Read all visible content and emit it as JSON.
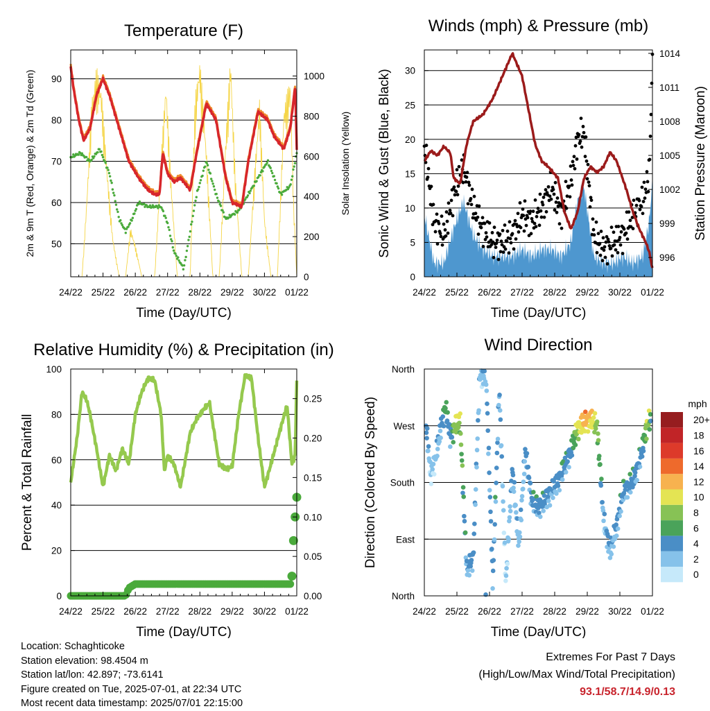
{
  "chart_data": [
    {
      "type": "line",
      "title": "Temperature (F)",
      "xlabel": "Time (Day/UTC)",
      "ylabel": "2m & 9m T (Red, Orange) & 2m Td (Green)",
      "y2label": "Solar Insolation (Yellow)",
      "ylim": [
        42,
        97
      ],
      "y2lim": [
        0,
        1130
      ],
      "yticks": [
        50,
        60,
        70,
        80,
        90
      ],
      "y2ticks": [
        0,
        200,
        400,
        600,
        800,
        1000
      ],
      "x_ticks": [
        "24/22",
        "25/22",
        "26/22",
        "27/22",
        "28/22",
        "29/22",
        "30/22",
        "01/22"
      ],
      "grid": true,
      "colors": {
        "temp2m": "#d7262b",
        "temp9m": "#ef8a2c",
        "dewpoint": "#4aaa3b",
        "solar": "#f5d547"
      },
      "series": [
        {
          "key": "temp2m",
          "x": [
            0,
            0.08,
            0.25,
            0.4,
            0.6,
            0.8,
            1.0,
            1.2,
            1.5,
            1.8,
            2.1,
            2.4,
            2.6,
            2.75,
            2.85,
            3.0,
            3.2,
            3.4,
            3.7,
            3.9,
            4.2,
            4.5,
            4.8,
            5.0,
            5.3,
            5.5,
            5.8,
            6.1,
            6.3,
            6.6,
            6.8,
            6.95,
            7.0
          ],
          "y": [
            93,
            88,
            80,
            75,
            78,
            86,
            90,
            86,
            78,
            70,
            66,
            63,
            62,
            62,
            72,
            67,
            65,
            66,
            63,
            72,
            84,
            80,
            66,
            60,
            59,
            70,
            82,
            80,
            76,
            73,
            78,
            88,
            73
          ]
        },
        {
          "key": "dewpoint",
          "x": [
            0,
            0.3,
            0.6,
            0.9,
            1.2,
            1.5,
            1.7,
            1.9,
            2.1,
            2.4,
            2.6,
            2.8,
            3.0,
            3.2,
            3.5,
            3.9,
            4.2,
            4.5,
            4.8,
            5.2,
            5.5,
            5.8,
            6.1,
            6.5,
            6.8,
            7.0
          ],
          "y": [
            71,
            72,
            70,
            73,
            67,
            56,
            53,
            56,
            60,
            59,
            59,
            59,
            55,
            48,
            44,
            62,
            70,
            62,
            56,
            58,
            62,
            66,
            70,
            62,
            64,
            72
          ]
        },
        {
          "key": "solar",
          "x": [
            0,
            0.15,
            0.35,
            0.5,
            0.65,
            0.8,
            0.95,
            1.1,
            1.3,
            1.5,
            1.7,
            1.85,
            2.0,
            2.2,
            2.4,
            2.6,
            2.8,
            2.95,
            3.1,
            3.3,
            3.5,
            3.7,
            3.85,
            4.0,
            4.2,
            4.4,
            4.6,
            4.8,
            4.95,
            5.1,
            5.3,
            5.5,
            5.7,
            5.85,
            6.0,
            6.2,
            6.4,
            6.6,
            6.8,
            6.9,
            7.0
          ],
          "y": [
            0,
            0,
            0,
            400,
            900,
            1050,
            950,
            600,
            200,
            0,
            0,
            250,
            160,
            0,
            0,
            0,
            600,
            1000,
            500,
            0,
            0,
            0,
            900,
            1100,
            650,
            0,
            0,
            700,
            1120,
            500,
            0,
            0,
            550,
            900,
            300,
            0,
            0,
            850,
            1000,
            400,
            0
          ]
        }
      ]
    },
    {
      "type": "line",
      "title": "Winds (mph) & Pressure (mb)",
      "xlabel": "Time (Day/UTC)",
      "ylabel": "Sonic Wind & Gust (Blue, Black)",
      "y2label": "Station Pressure (Maroon)",
      "ylim": [
        0,
        33
      ],
      "y2lim": [
        994.3,
        1014.3
      ],
      "yticks": [
        0,
        5,
        10,
        15,
        20,
        25,
        30
      ],
      "y2ticks": [
        996,
        999,
        1002,
        1005,
        1008,
        1011,
        1014
      ],
      "x_ticks": [
        "24/22",
        "25/22",
        "26/22",
        "27/22",
        "28/22",
        "29/22",
        "30/22",
        "01/22"
      ],
      "grid": true,
      "colors": {
        "wind": "#4e97cf",
        "gust": "#000000",
        "pressure": "#9b1b1b"
      },
      "series": [
        {
          "key": "pressure",
          "x": [
            0,
            0.2,
            0.4,
            0.6,
            0.8,
            0.9,
            1.1,
            1.3,
            1.5,
            1.8,
            2.1,
            2.4,
            2.7,
            3.0,
            3.2,
            3.4,
            3.6,
            3.8,
            4.1,
            4.3,
            4.5,
            4.7,
            4.9,
            5.1,
            5.3,
            5.5,
            5.7,
            5.9,
            6.2,
            6.4,
            6.6,
            6.8,
            6.9,
            7.0
          ],
          "y": [
            1004.5,
            1005.4,
            1005,
            1005.8,
            1005.2,
            1003,
            1002.5,
            1006,
            1008,
            1008.6,
            1010,
            1012,
            1014,
            1012,
            1009,
            1006,
            1004.5,
            1004,
            1003,
            1000,
            998.5,
            1000,
            1003,
            1004,
            1003.5,
            1004,
            1005.3,
            1004.5,
            1002,
            1000,
            998.5,
            997.3,
            996.5,
            995
          ]
        },
        {
          "key": "wind",
          "x": [
            0,
            0.3,
            0.6,
            0.9,
            1.2,
            1.5,
            1.8,
            2.1,
            2.4,
            2.7,
            3.0,
            3.3,
            3.6,
            3.9,
            4.2,
            4.5,
            4.7,
            4.9,
            5.2,
            5.5,
            5.8,
            6.1,
            6.4,
            6.7,
            6.9,
            7.0
          ],
          "y": [
            9,
            2,
            2,
            7,
            11,
            6,
            4,
            3,
            3,
            3,
            4,
            3,
            4,
            4,
            3,
            5,
            11,
            13,
            3,
            2,
            2,
            3,
            2,
            3,
            8,
            14
          ]
        },
        {
          "key": "gust",
          "x": [
            0,
            0.3,
            0.6,
            0.9,
            1.2,
            1.5,
            1.8,
            2.1,
            2.4,
            2.7,
            3.0,
            3.3,
            3.6,
            3.9,
            4.2,
            4.5,
            4.7,
            4.9,
            5.2,
            5.5,
            5.8,
            6.1,
            6.4,
            6.7,
            6.9,
            7.0
          ],
          "y": [
            19,
            8,
            6,
            12,
            16,
            10,
            7,
            5,
            5,
            6,
            9,
            8,
            10,
            13,
            9,
            14,
            20,
            21,
            6,
            4,
            5,
            6,
            9,
            11,
            15,
            31
          ]
        }
      ]
    },
    {
      "type": "line",
      "title": "Relative Humidity (%) & Precipitation (in)",
      "xlabel": "Time (Day/UTC)",
      "ylabel": "Percent & Total Rainfall",
      "ylim": [
        0,
        100
      ],
      "y2lim": [
        0,
        0.2875
      ],
      "yticks": [
        0,
        20,
        40,
        60,
        80,
        100
      ],
      "y2ticks": [
        0.0,
        0.05,
        0.1,
        0.15,
        0.2,
        0.25
      ],
      "y2tick_labels": [
        "0.00",
        "0.05",
        "0.10",
        "0.15",
        "0.20",
        "0.25"
      ],
      "x_ticks": [
        "24/22",
        "25/22",
        "26/22",
        "27/22",
        "28/22",
        "29/22",
        "30/22",
        "01/22"
      ],
      "grid": true,
      "colors": {
        "rh": "#95c94e",
        "precip": "#4aaa3b"
      },
      "series": [
        {
          "key": "rh",
          "x": [
            0,
            0.2,
            0.35,
            0.5,
            0.6,
            0.8,
            1.0,
            1.2,
            1.4,
            1.6,
            1.8,
            2.0,
            2.2,
            2.4,
            2.6,
            2.8,
            2.9,
            3.0,
            3.2,
            3.4,
            3.7,
            3.9,
            4.1,
            4.3,
            4.6,
            4.8,
            5.0,
            5.2,
            5.4,
            5.6,
            5.8,
            6.0,
            6.2,
            6.5,
            6.7,
            6.85,
            6.95,
            7.0
          ],
          "y": [
            50,
            70,
            90,
            86,
            80,
            65,
            48,
            62,
            55,
            65,
            58,
            80,
            90,
            96,
            95,
            80,
            55,
            62,
            58,
            48,
            72,
            78,
            82,
            85,
            58,
            56,
            57,
            80,
            97,
            96,
            70,
            48,
            58,
            74,
            84,
            58,
            62,
            95
          ]
        },
        {
          "key": "precip",
          "x": [
            0,
            1.7,
            1.8,
            2.0,
            6.8,
            6.85,
            6.9,
            6.95,
            7.0
          ],
          "y": [
            0,
            0,
            0.01,
            0.015,
            0.015,
            0.025,
            0.07,
            0.1,
            0.125
          ]
        }
      ]
    },
    {
      "type": "scatter",
      "title": "Wind Direction",
      "xlabel": "Time (Day/UTC)",
      "ylabel": "Direction (Colored By Speed)",
      "yticks": [
        "North",
        "East",
        "South",
        "West",
        "North"
      ],
      "x_ticks": [
        "24/22",
        "25/22",
        "26/22",
        "27/22",
        "28/22",
        "29/22",
        "30/22",
        "01/22"
      ],
      "grid": true,
      "legend": {
        "placement": "right",
        "title": "mph",
        "labels": [
          "0",
          "2",
          "4",
          "6",
          "8",
          "10",
          "12",
          "14",
          "16",
          "18",
          "20+"
        ],
        "colors": [
          "#c6e9fa",
          "#86c2ea",
          "#4a8ec6",
          "#4aa35a",
          "#87c255",
          "#e4e453",
          "#f7b24f",
          "#ee6a2c",
          "#dd3a2a",
          "#c12427",
          "#961d1f"
        ]
      },
      "series": [
        {
          "key": "direction",
          "x": [
            0.05,
            0.2,
            0.35,
            0.5,
            0.65,
            0.8,
            0.95,
            1.1,
            1.3,
            1.5,
            1.7,
            1.9,
            2.1,
            2.3,
            2.5,
            2.7,
            2.9,
            3.1,
            3.3,
            3.5,
            3.7,
            3.9,
            4.1,
            4.3,
            4.5,
            4.7,
            4.9,
            5.1,
            5.3,
            5.5,
            5.7,
            5.9,
            6.1,
            6.3,
            6.5,
            6.7,
            6.85,
            6.95
          ],
          "y": [
            270,
            190,
            220,
            265,
            300,
            250,
            270,
            275,
            40,
            60,
            350,
            345,
            20,
            330,
            20,
            200,
            80,
            230,
            150,
            140,
            150,
            165,
            180,
            205,
            230,
            265,
            275,
            280,
            270,
            120,
            70,
            110,
            165,
            175,
            195,
            235,
            275,
            280
          ],
          "speed": [
            4,
            1,
            2,
            3,
            6,
            3,
            9,
            8,
            3,
            4,
            2,
            3,
            4,
            3,
            1,
            3,
            2,
            3,
            4,
            4,
            4,
            3,
            4,
            4,
            4,
            9,
            12,
            11,
            8,
            2,
            3,
            3,
            4,
            4,
            4,
            4,
            10,
            5
          ]
        }
      ]
    }
  ],
  "footer": {
    "location": "Location: Schaghticoke",
    "elevation": "Station elevation: 98.4504 m",
    "latlon": "Station lat/lon: 42.897; -73.6141",
    "created": "Figure created on Tue, 2025-07-01, at 22:34 UTC",
    "recent": "Most recent data timestamp: 2025/07/01 22:15:00",
    "extremes_title": "Extremes For Past 7 Days",
    "extremes_sub": "(High/Low/Max Wind/Total Precipitation)",
    "extremes_values": "93.1/58.7/14.9/0.13"
  }
}
